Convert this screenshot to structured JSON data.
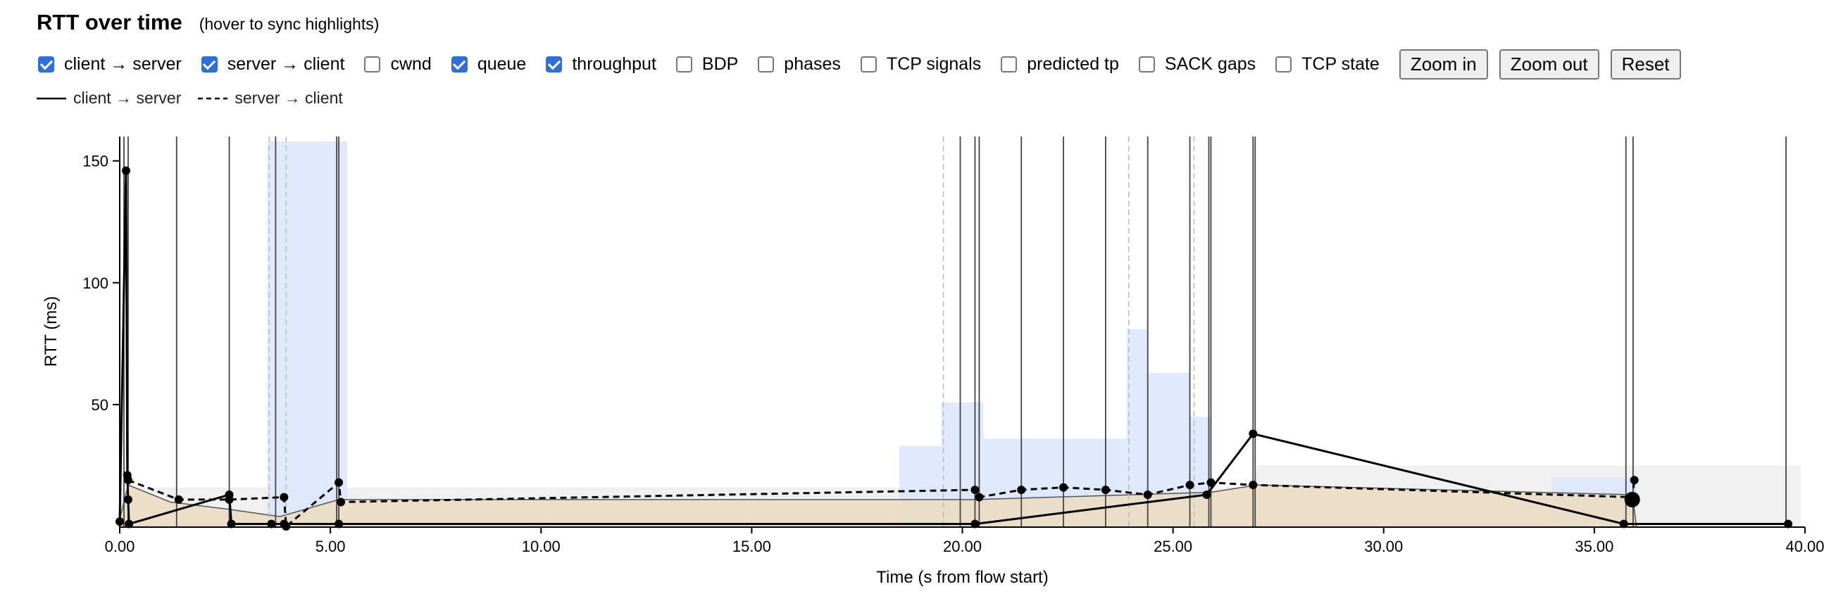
{
  "header": {
    "title": "RTT over time",
    "subtitle": "(hover to sync highlights)"
  },
  "controls": {
    "checkboxes": [
      {
        "label": "client → server",
        "checked": true
      },
      {
        "label": "server → client",
        "checked": true
      },
      {
        "label": "cwnd",
        "checked": false
      },
      {
        "label": "queue",
        "checked": true
      },
      {
        "label": "throughput",
        "checked": true
      },
      {
        "label": "BDP",
        "checked": false
      },
      {
        "label": "phases",
        "checked": false
      },
      {
        "label": "TCP signals",
        "checked": false
      },
      {
        "label": "predicted tp",
        "checked": false
      },
      {
        "label": "SACK gaps",
        "checked": false
      },
      {
        "label": "TCP state",
        "checked": false
      }
    ],
    "buttons": {
      "zoom_in": "Zoom in",
      "zoom_out": "Zoom out",
      "reset": "Reset"
    }
  },
  "legend": {
    "solid": "client → server",
    "dashed": "server → client"
  },
  "colors": {
    "checkbox_accent": "#2f6fd6",
    "throughput_fill": "#dce6fb",
    "queue_fill": "#ecdcc0",
    "queue_bg_fill": "#e6e6e6",
    "series_line": "#000000"
  },
  "chart_data": {
    "type": "line",
    "title": "",
    "xlabel": "Time (s from flow start)",
    "ylabel": "RTT (ms)",
    "xlim": [
      0,
      40
    ],
    "ylim": [
      0,
      160
    ],
    "x_ticks": [
      "0.00",
      "5.00",
      "10.00",
      "15.00",
      "20.00",
      "25.00",
      "30.00",
      "35.00",
      "40.00"
    ],
    "y_ticks": [
      "50",
      "100",
      "150"
    ],
    "grid": false,
    "series": [
      {
        "name": "client → server",
        "style": "solid",
        "points": [
          [
            0.0,
            2
          ],
          [
            0.15,
            146
          ],
          [
            0.18,
            21
          ],
          [
            0.2,
            11
          ],
          [
            0.22,
            1
          ],
          [
            2.6,
            13
          ],
          [
            2.65,
            1
          ],
          [
            3.6,
            1
          ],
          [
            3.9,
            1
          ],
          [
            5.2,
            1
          ],
          [
            20.3,
            1
          ],
          [
            25.8,
            13
          ],
          [
            26.9,
            38
          ],
          [
            35.7,
            1
          ],
          [
            39.6,
            1
          ]
        ]
      },
      {
        "name": "server → client",
        "style": "dashed",
        "points": [
          [
            0.2,
            19
          ],
          [
            1.4,
            11
          ],
          [
            2.6,
            11
          ],
          [
            3.9,
            12
          ],
          [
            3.95,
            0
          ],
          [
            5.2,
            18
          ],
          [
            5.25,
            10
          ],
          [
            20.3,
            15
          ],
          [
            20.4,
            12
          ],
          [
            21.4,
            15
          ],
          [
            22.4,
            16
          ],
          [
            23.4,
            15
          ],
          [
            24.4,
            13
          ],
          [
            25.4,
            17
          ],
          [
            25.9,
            18
          ],
          [
            26.9,
            17
          ],
          [
            35.9,
            12
          ],
          [
            35.95,
            19
          ]
        ]
      }
    ],
    "markers": [
      {
        "x": 35.9,
        "y": 11,
        "kind": "large-dot"
      }
    ],
    "throughput": [
      {
        "x0": 3.5,
        "x1": 5.4,
        "value": 158
      },
      {
        "x0": 18.5,
        "x1": 19.5,
        "value": 33
      },
      {
        "x0": 19.5,
        "x1": 20.5,
        "value": 51
      },
      {
        "x0": 20.5,
        "x1": 23.9,
        "value": 36
      },
      {
        "x0": 23.9,
        "x1": 24.4,
        "value": 81
      },
      {
        "x0": 24.4,
        "x1": 25.4,
        "value": 63
      },
      {
        "x0": 25.4,
        "x1": 25.9,
        "value": 45
      },
      {
        "x0": 34.0,
        "x1": 36.0,
        "value": 20
      }
    ],
    "queue": [
      [
        0.0,
        3
      ],
      [
        0.2,
        17
      ],
      [
        1.2,
        10
      ],
      [
        2.6,
        7
      ],
      [
        3.8,
        4
      ],
      [
        5.2,
        11
      ],
      [
        18.5,
        11
      ],
      [
        20.3,
        11
      ],
      [
        25.9,
        14
      ],
      [
        27.0,
        17
      ],
      [
        35.9,
        13
      ],
      [
        36.0,
        0
      ]
    ],
    "queue_background": [
      [
        0.0,
        16
      ],
      [
        26.9,
        16
      ],
      [
        27.0,
        25
      ],
      [
        39.9,
        25
      ]
    ],
    "vertical_markers": [
      {
        "x": 0.1,
        "style": "solid"
      },
      {
        "x": 0.2,
        "style": "solid"
      },
      {
        "x": 1.35,
        "style": "solid"
      },
      {
        "x": 2.6,
        "style": "solid"
      },
      {
        "x": 3.55,
        "style": "dashed"
      },
      {
        "x": 3.7,
        "style": "solid"
      },
      {
        "x": 3.95,
        "style": "dashed"
      },
      {
        "x": 5.15,
        "style": "solid"
      },
      {
        "x": 5.2,
        "style": "solid"
      },
      {
        "x": 19.55,
        "style": "dashed"
      },
      {
        "x": 19.95,
        "style": "solid"
      },
      {
        "x": 20.3,
        "style": "solid"
      },
      {
        "x": 20.4,
        "style": "solid"
      },
      {
        "x": 21.4,
        "style": "solid"
      },
      {
        "x": 22.4,
        "style": "solid"
      },
      {
        "x": 23.4,
        "style": "solid"
      },
      {
        "x": 23.95,
        "style": "dashed"
      },
      {
        "x": 24.4,
        "style": "solid"
      },
      {
        "x": 25.4,
        "style": "solid"
      },
      {
        "x": 25.5,
        "style": "dashed"
      },
      {
        "x": 25.85,
        "style": "solid"
      },
      {
        "x": 25.9,
        "style": "solid"
      },
      {
        "x": 26.9,
        "style": "solid"
      },
      {
        "x": 26.95,
        "style": "solid"
      },
      {
        "x": 35.75,
        "style": "solid"
      },
      {
        "x": 35.92,
        "style": "solid"
      },
      {
        "x": 39.55,
        "style": "solid"
      }
    ]
  }
}
